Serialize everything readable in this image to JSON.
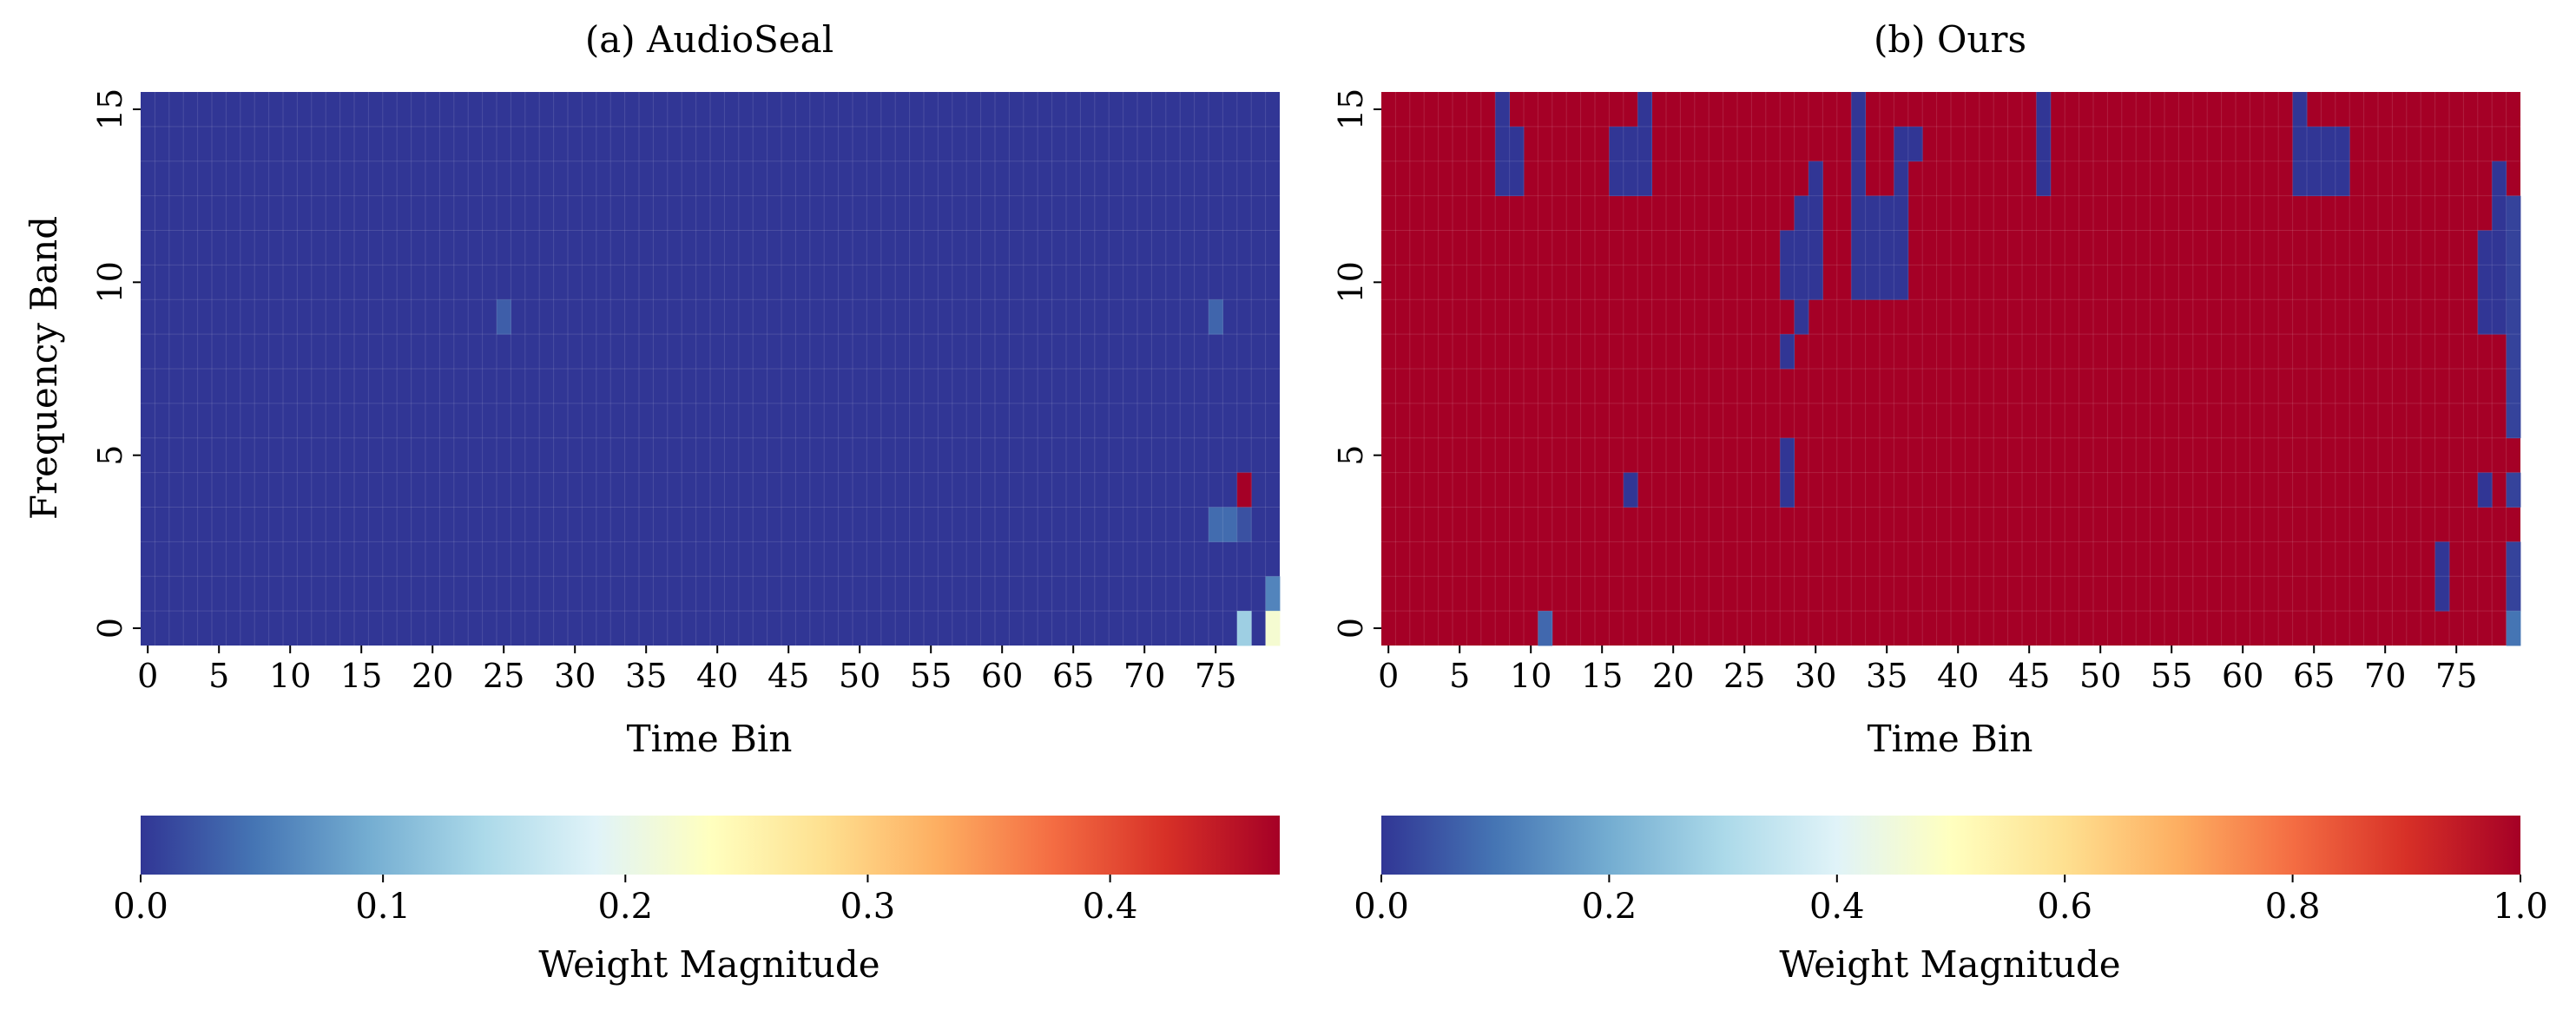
{
  "chart_data": [
    {
      "type": "heatmap",
      "title": "(a) AudioSeal",
      "xlabel": "Time Bin",
      "ylabel": "Frequency Band",
      "x_ticks": [
        0,
        5,
        10,
        15,
        20,
        25,
        30,
        35,
        40,
        45,
        50,
        55,
        60,
        65,
        70,
        75
      ],
      "y_ticks": [
        0,
        5,
        10,
        15
      ],
      "n_x": 80,
      "n_y": 16,
      "default_value": 0.0,
      "cells": [
        {
          "x": 25,
          "y": 9,
          "v": 0.03
        },
        {
          "x": 75,
          "y": 9,
          "v": 0.035
        },
        {
          "x": 75,
          "y": 3,
          "v": 0.04
        },
        {
          "x": 76,
          "y": 3,
          "v": 0.04
        },
        {
          "x": 77,
          "y": 4,
          "v": 0.47
        },
        {
          "x": 77,
          "y": 3,
          "v": 0.02
        },
        {
          "x": 77,
          "y": 0,
          "v": 0.13
        },
        {
          "x": 79,
          "y": 1,
          "v": 0.06
        },
        {
          "x": 79,
          "y": 0,
          "v": 0.22
        }
      ],
      "colorbar": {
        "label": "Weight Magnitude",
        "range": [
          0,
          0.47
        ],
        "ticks": [
          "0.0",
          "0.1",
          "0.2",
          "0.3",
          "0.4"
        ],
        "tick_values": [
          0,
          0.1,
          0.2,
          0.3,
          0.4
        ]
      }
    },
    {
      "type": "heatmap",
      "title": "(b) Ours",
      "xlabel": "Time Bin",
      "ylabel": "",
      "x_ticks": [
        0,
        5,
        10,
        15,
        20,
        25,
        30,
        35,
        40,
        45,
        50,
        55,
        60,
        65,
        70,
        75
      ],
      "y_ticks": [
        0,
        5,
        10,
        15
      ],
      "n_x": 80,
      "n_y": 16,
      "default_value": 1.0,
      "cells": [
        {
          "x": 8,
          "y": 15,
          "v": 0.0
        },
        {
          "x": 8,
          "y": 14,
          "v": 0.0
        },
        {
          "x": 9,
          "y": 14,
          "v": 0.0
        },
        {
          "x": 8,
          "y": 13,
          "v": 0.0
        },
        {
          "x": 9,
          "y": 13,
          "v": 0.0
        },
        {
          "x": 16,
          "y": 14,
          "v": 0.0
        },
        {
          "x": 17,
          "y": 14,
          "v": 0.0
        },
        {
          "x": 16,
          "y": 13,
          "v": 0.0
        },
        {
          "x": 17,
          "y": 13,
          "v": 0.0
        },
        {
          "x": 18,
          "y": 15,
          "v": 0.0
        },
        {
          "x": 18,
          "y": 14,
          "v": 0.0
        },
        {
          "x": 18,
          "y": 13,
          "v": 0.0
        },
        {
          "x": 33,
          "y": 15,
          "v": 0.0
        },
        {
          "x": 33,
          "y": 14,
          "v": 0.0
        },
        {
          "x": 36,
          "y": 14,
          "v": 0.0
        },
        {
          "x": 37,
          "y": 14,
          "v": 0.0
        },
        {
          "x": 36,
          "y": 13,
          "v": 0.0
        },
        {
          "x": 46,
          "y": 15,
          "v": 0.0
        },
        {
          "x": 46,
          "y": 14,
          "v": 0.0
        },
        {
          "x": 46,
          "y": 13,
          "v": 0.0
        },
        {
          "x": 64,
          "y": 15,
          "v": 0.0
        },
        {
          "x": 64,
          "y": 14,
          "v": 0.0
        },
        {
          "x": 65,
          "y": 14,
          "v": 0.0
        },
        {
          "x": 66,
          "y": 14,
          "v": 0.0
        },
        {
          "x": 67,
          "y": 14,
          "v": 0.0
        },
        {
          "x": 64,
          "y": 13,
          "v": 0.0
        },
        {
          "x": 65,
          "y": 13,
          "v": 0.0
        },
        {
          "x": 66,
          "y": 13,
          "v": 0.0
        },
        {
          "x": 67,
          "y": 13,
          "v": 0.0
        },
        {
          "x": 30,
          "y": 13,
          "v": 0.0
        },
        {
          "x": 29,
          "y": 12,
          "v": 0.0
        },
        {
          "x": 30,
          "y": 12,
          "v": 0.0
        },
        {
          "x": 28,
          "y": 11,
          "v": 0.0
        },
        {
          "x": 29,
          "y": 11,
          "v": 0.0
        },
        {
          "x": 30,
          "y": 11,
          "v": 0.0
        },
        {
          "x": 28,
          "y": 10,
          "v": 0.0
        },
        {
          "x": 29,
          "y": 10,
          "v": 0.0
        },
        {
          "x": 30,
          "y": 10,
          "v": 0.0
        },
        {
          "x": 29,
          "y": 9,
          "v": 0.0
        },
        {
          "x": 28,
          "y": 8,
          "v": 0.0
        },
        {
          "x": 28,
          "y": 5,
          "v": 0.0
        },
        {
          "x": 28,
          "y": 4,
          "v": 0.0
        },
        {
          "x": 33,
          "y": 13,
          "v": 0.0
        },
        {
          "x": 33,
          "y": 12,
          "v": 0.0
        },
        {
          "x": 34,
          "y": 12,
          "v": 0.0
        },
        {
          "x": 35,
          "y": 12,
          "v": 0.0
        },
        {
          "x": 36,
          "y": 12,
          "v": 0.0
        },
        {
          "x": 33,
          "y": 11,
          "v": 0.0
        },
        {
          "x": 34,
          "y": 11,
          "v": 0.0
        },
        {
          "x": 35,
          "y": 11,
          "v": 0.0
        },
        {
          "x": 36,
          "y": 11,
          "v": 0.0
        },
        {
          "x": 33,
          "y": 10,
          "v": 0.0
        },
        {
          "x": 34,
          "y": 10,
          "v": 0.0
        },
        {
          "x": 35,
          "y": 10,
          "v": 0.0
        },
        {
          "x": 36,
          "y": 10,
          "v": 0.0
        },
        {
          "x": 17,
          "y": 4,
          "v": 0.0
        },
        {
          "x": 11,
          "y": 0,
          "v": 0.08
        },
        {
          "x": 74,
          "y": 2,
          "v": 0.0
        },
        {
          "x": 74,
          "y": 1,
          "v": 0.0
        },
        {
          "x": 78,
          "y": 13,
          "v": 0.0
        },
        {
          "x": 78,
          "y": 12,
          "v": 0.0
        },
        {
          "x": 78,
          "y": 11,
          "v": 0.0
        },
        {
          "x": 79,
          "y": 12,
          "v": 0.02
        },
        {
          "x": 79,
          "y": 11,
          "v": 0.02
        },
        {
          "x": 77,
          "y": 11,
          "v": 0.0
        },
        {
          "x": 77,
          "y": 10,
          "v": 0.0
        },
        {
          "x": 78,
          "y": 10,
          "v": 0.0
        },
        {
          "x": 79,
          "y": 10,
          "v": 0.02
        },
        {
          "x": 77,
          "y": 9,
          "v": 0.0
        },
        {
          "x": 78,
          "y": 9,
          "v": 0.0
        },
        {
          "x": 79,
          "y": 9,
          "v": 0.02
        },
        {
          "x": 79,
          "y": 8,
          "v": 0.02
        },
        {
          "x": 79,
          "y": 7,
          "v": 0.02
        },
        {
          "x": 79,
          "y": 6,
          "v": 0.02
        },
        {
          "x": 77,
          "y": 4,
          "v": 0.0
        },
        {
          "x": 79,
          "y": 4,
          "v": 0.02
        },
        {
          "x": 79,
          "y": 2,
          "v": 0.02
        },
        {
          "x": 79,
          "y": 1,
          "v": 0.02
        },
        {
          "x": 79,
          "y": 0,
          "v": 0.1
        }
      ],
      "colorbar": {
        "label": "Weight Magnitude",
        "range": [
          0,
          1.0
        ],
        "ticks": [
          "0.0",
          "0.2",
          "0.4",
          "0.6",
          "0.8",
          "1.0"
        ],
        "tick_values": [
          0,
          0.2,
          0.4,
          0.6,
          0.8,
          1.0
        ]
      }
    }
  ],
  "colormap": "RdYlBu_r",
  "colors": {
    "cmap_stops": [
      "#313695",
      "#4575b4",
      "#74add1",
      "#abd9e9",
      "#e0f3f8",
      "#ffffbf",
      "#fee090",
      "#fdae61",
      "#f46d43",
      "#d73027",
      "#a50026"
    ]
  }
}
